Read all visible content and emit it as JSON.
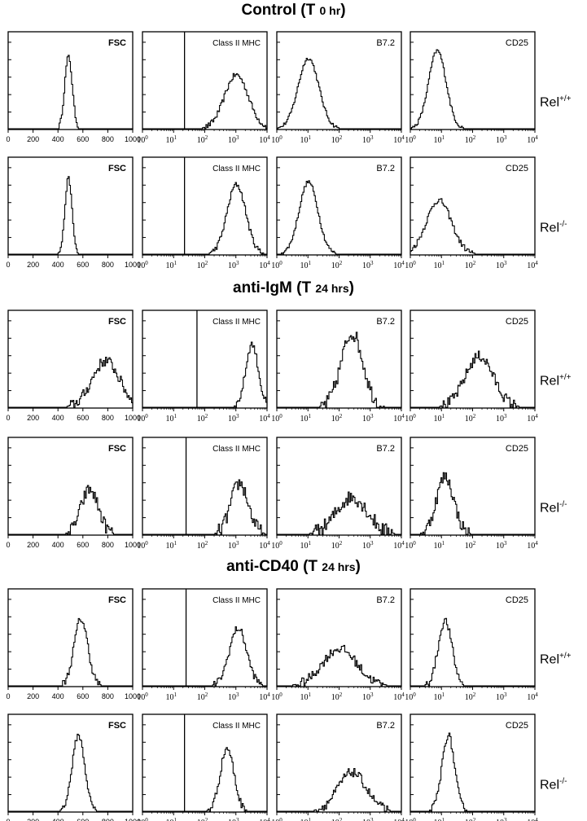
{
  "sections": [
    {
      "title_main": "Control (T ",
      "title_small": "0 hr",
      "title_end": ")"
    },
    {
      "title_main": "anti-IgM (T ",
      "title_small": "24 hrs",
      "title_end": ")"
    },
    {
      "title_main": "anti-CD40 (T ",
      "title_small": "24 hrs",
      "title_end": ")"
    }
  ],
  "genotypes": [
    {
      "base": "Rel",
      "sup": "+/+"
    },
    {
      "base": "Rel",
      "sup": "-/-"
    }
  ],
  "chart_data": {
    "type": "histogram-grid",
    "columns": [
      {
        "label": "FSC",
        "scale": "linear",
        "range": [
          0,
          1000
        ],
        "ticks": [
          "0",
          "200",
          "400",
          "600",
          "800",
          "1000"
        ]
      },
      {
        "label": "Class II MHC",
        "scale": "log",
        "range": [
          0,
          4
        ],
        "ticks": [
          "10^0",
          "10^1",
          "10^2",
          "10^3",
          "10^4"
        ]
      },
      {
        "label": "B7.2",
        "scale": "log",
        "range": [
          0,
          4
        ],
        "ticks": [
          "10^0",
          "10^1",
          "10^2",
          "10^3",
          "10^4"
        ]
      },
      {
        "label": "CD25",
        "scale": "log",
        "range": [
          0,
          4
        ],
        "ticks": [
          "10^0",
          "10^1",
          "10^2",
          "10^3",
          "10^4"
        ]
      }
    ],
    "rows": [
      {
        "section": 0,
        "genotype": 0,
        "peaks": [
          {
            "center": 480,
            "width": 30,
            "height": 0.78,
            "noise": 0.02
          },
          {
            "center": 3.0,
            "width": 0.38,
            "height": 0.58,
            "noise": 0.03,
            "gate": 1.35
          },
          {
            "center": 1.0,
            "width": 0.33,
            "height": 0.76,
            "noise": 0.02
          },
          {
            "center": 0.85,
            "width": 0.28,
            "height": 0.84,
            "noise": 0.02
          }
        ]
      },
      {
        "section": 0,
        "genotype": 1,
        "peaks": [
          {
            "center": 480,
            "width": 28,
            "height": 0.82,
            "noise": 0.02
          },
          {
            "center": 3.0,
            "width": 0.3,
            "height": 0.75,
            "noise": 0.03,
            "gate": 1.35
          },
          {
            "center": 1.0,
            "width": 0.3,
            "height": 0.78,
            "noise": 0.02
          },
          {
            "center": 0.9,
            "width": 0.4,
            "height": 0.58,
            "noise": 0.03
          }
        ]
      },
      {
        "section": 1,
        "genotype": 0,
        "peaks": [
          {
            "center": 780,
            "width": 110,
            "height": 0.5,
            "noise": 0.06
          },
          {
            "center": 3.5,
            "width": 0.2,
            "height": 0.68,
            "noise": 0.04,
            "gate": 1.75
          },
          {
            "center": 2.4,
            "width": 0.35,
            "height": 0.8,
            "noise": 0.08
          },
          {
            "center": 2.2,
            "width": 0.45,
            "height": 0.55,
            "noise": 0.06
          }
        ]
      },
      {
        "section": 1,
        "genotype": 1,
        "peaks": [
          {
            "center": 650,
            "width": 70,
            "height": 0.48,
            "noise": 0.07
          },
          {
            "center": 3.1,
            "width": 0.28,
            "height": 0.55,
            "noise": 0.08,
            "gate": 1.4
          },
          {
            "center": 2.4,
            "width": 0.5,
            "height": 0.4,
            "noise": 0.08
          },
          {
            "center": 1.1,
            "width": 0.28,
            "height": 0.62,
            "noise": 0.07
          }
        ]
      },
      {
        "section": 2,
        "genotype": 0,
        "peaks": [
          {
            "center": 580,
            "width": 55,
            "height": 0.72,
            "noise": 0.04
          },
          {
            "center": 3.05,
            "width": 0.28,
            "height": 0.62,
            "noise": 0.04,
            "gate": 1.4
          },
          {
            "center": 2.0,
            "width": 0.55,
            "height": 0.4,
            "noise": 0.05
          },
          {
            "center": 1.1,
            "width": 0.22,
            "height": 0.7,
            "noise": 0.04
          }
        ]
      },
      {
        "section": 2,
        "genotype": 1,
        "peaks": [
          {
            "center": 560,
            "width": 50,
            "height": 0.82,
            "noise": 0.03
          },
          {
            "center": 2.7,
            "width": 0.22,
            "height": 0.68,
            "noise": 0.04,
            "gate": 1.35
          },
          {
            "center": 2.4,
            "width": 0.45,
            "height": 0.42,
            "noise": 0.05
          },
          {
            "center": 1.2,
            "width": 0.2,
            "height": 0.82,
            "noise": 0.04
          }
        ]
      }
    ]
  }
}
